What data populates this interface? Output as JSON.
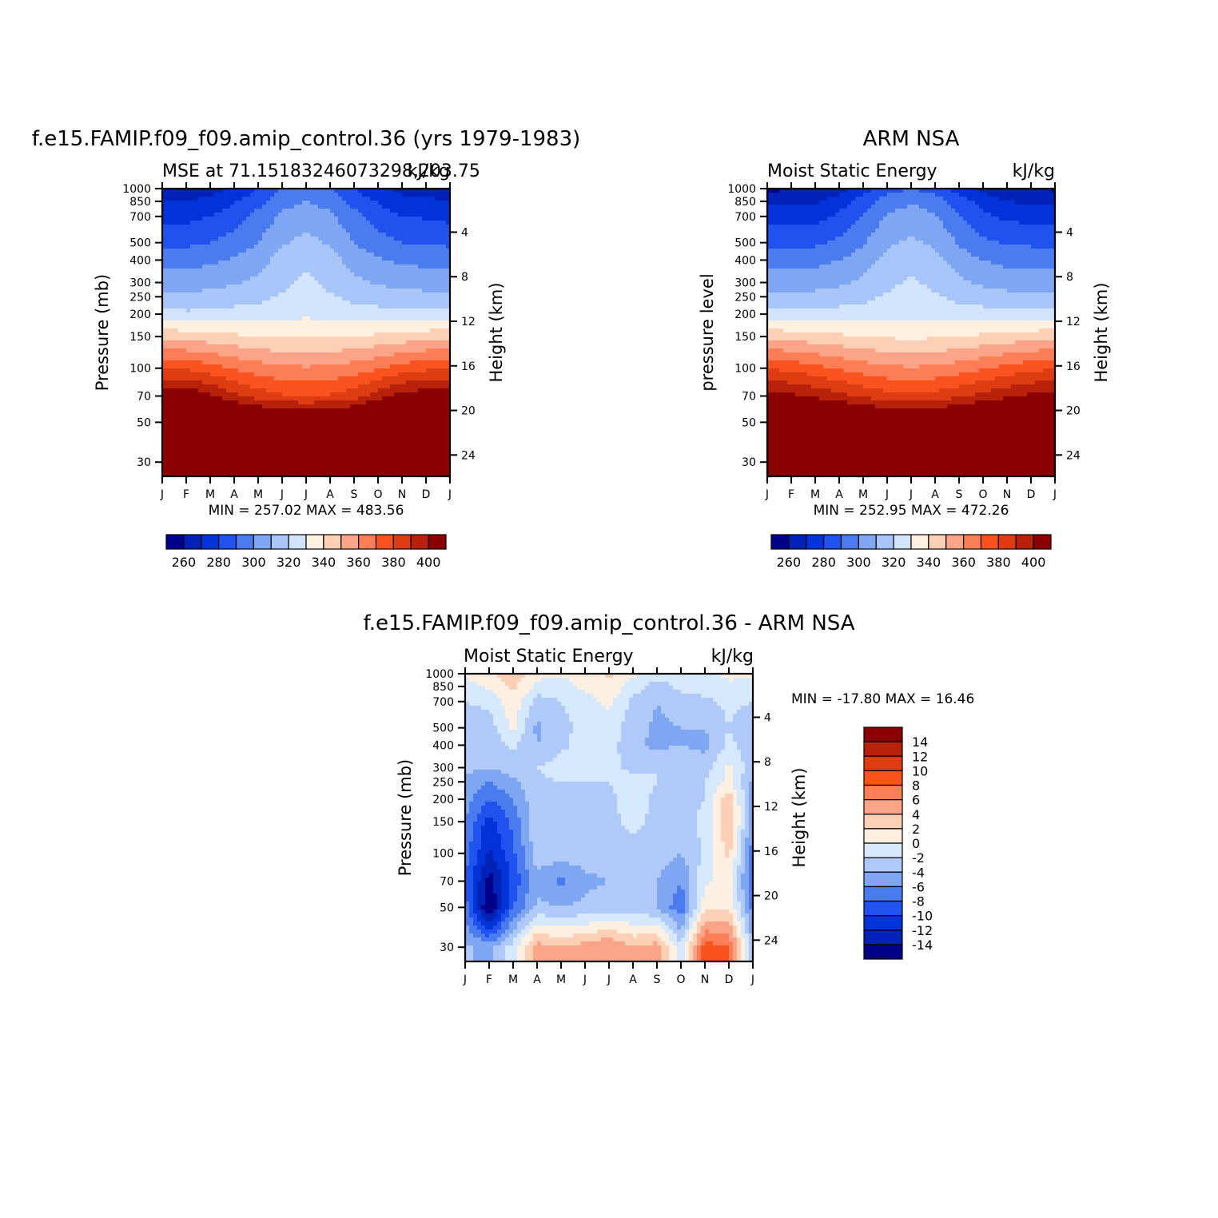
{
  "colors": {
    "mse_levels": [
      "#00008b",
      "#0022b6",
      "#0033d8",
      "#1f52ee",
      "#4a7cf0",
      "#7fa6f3",
      "#a8c5fa",
      "#d2e4fc",
      "#fff0e0",
      "#fdd0b6",
      "#fca487",
      "#fb7e56",
      "#fa5320",
      "#e03c14",
      "#b8220a",
      "#8b0000"
    ],
    "diff_levels": [
      "#00008b",
      "#0022b6",
      "#0033d8",
      "#1f52ee",
      "#4a7cf0",
      "#7fa6f3",
      "#afc9fa",
      "#d6e8fd",
      "#fdf0e0",
      "#fdd0b6",
      "#fca487",
      "#fb7e56",
      "#fa5320",
      "#e03c14",
      "#b8220a",
      "#8b0000"
    ]
  },
  "panels": [
    {
      "id": "model",
      "main_title": "f.e15.FAMIP.f09_f09.amip_control.36 (yrs 1979-1983)",
      "left_string": "MSE at 71.15183246073298,203.75",
      "right_string": "kJ/kg",
      "y_left_label": "Pressure (mb)",
      "y_right_label": "Height (km)",
      "stats": "MIN = 257.02 MAX = 483.56",
      "colorbar_labels": [
        "260",
        "280",
        "300",
        "320",
        "340",
        "360",
        "380",
        "400"
      ]
    },
    {
      "id": "obs",
      "main_title": "ARM NSA",
      "left_string": "Moist Static Energy",
      "right_string": "kJ/kg",
      "y_left_label": "pressure level",
      "y_right_label": "Height (km)",
      "stats": "MIN = 252.95 MAX = 472.26",
      "colorbar_labels": [
        "260",
        "280",
        "300",
        "320",
        "340",
        "360",
        "380",
        "400"
      ]
    },
    {
      "id": "diff",
      "main_title": "f.e15.FAMIP.f09_f09.amip_control.36 - ARM NSA",
      "left_string": "Moist Static Energy",
      "right_string": "kJ/kg",
      "y_left_label": "Pressure (mb)",
      "y_right_label": "Height (km)",
      "stats": "MIN = -17.80 MAX =  16.46",
      "colorbar_labels": [
        "14",
        "12",
        "10",
        "8",
        "6",
        "4",
        "2",
        "0",
        "-2",
        "-4",
        "-6",
        "-8",
        "-10",
        "-12",
        "-14"
      ]
    }
  ],
  "axes": {
    "x_tick_labels": [
      "J",
      "F",
      "M",
      "A",
      "M",
      "J",
      "J",
      "A",
      "S",
      "O",
      "N",
      "D",
      "J"
    ],
    "pressure_ticks": [
      "30",
      "50",
      "70",
      "100",
      "150",
      "200",
      "250",
      "300",
      "400",
      "500",
      "700",
      "850",
      "1000"
    ],
    "height_ticks": [
      "24",
      "20",
      "16",
      "12",
      "8",
      "4"
    ]
  },
  "chart_data": [
    {
      "type": "heatmap",
      "title": "f.e15.FAMIP.f09_f09.amip_control.36 (yrs 1979-1983)",
      "subtitle": "MSE at 71.15183246073298,203.75",
      "units": "kJ/kg",
      "xlabel": "",
      "ylabel": "Pressure (mb)",
      "y2label": "Height (km)",
      "x": [
        "J",
        "F",
        "M",
        "A",
        "M",
        "J",
        "J",
        "A",
        "S",
        "O",
        "N",
        "D",
        "J"
      ],
      "y": [
        1000,
        850,
        700,
        500,
        400,
        300,
        250,
        200,
        150,
        100,
        70,
        50,
        30
      ],
      "ylim": [
        1000,
        25
      ],
      "contour_levels": [
        260,
        270,
        280,
        290,
        300,
        310,
        320,
        330,
        340,
        350,
        360,
        370,
        380,
        390,
        400
      ],
      "values": [
        [
          264,
          263,
          266,
          272,
          280,
          290,
          294,
          290,
          280,
          272,
          267,
          266,
          264
        ],
        [
          270,
          270,
          273,
          279,
          287,
          296,
          300,
          296,
          287,
          279,
          273,
          272,
          270
        ],
        [
          277,
          277,
          280,
          285,
          293,
          302,
          306,
          302,
          293,
          285,
          280,
          279,
          277
        ],
        [
          288,
          288,
          290,
          294,
          300,
          309,
          313,
          309,
          300,
          294,
          290,
          289,
          288
        ],
        [
          296,
          296,
          298,
          301,
          306,
          314,
          318,
          314,
          306,
          301,
          298,
          297,
          296
        ],
        [
          306,
          305,
          307,
          309,
          312,
          318,
          322,
          318,
          312,
          309,
          307,
          306,
          306
        ],
        [
          313,
          312,
          313,
          315,
          317,
          321,
          324,
          321,
          317,
          315,
          313,
          313,
          313
        ],
        [
          324,
          322,
          323,
          324,
          325,
          327,
          328,
          327,
          325,
          324,
          323,
          323,
          324
        ],
        [
          348,
          346,
          344,
          342,
          340,
          339,
          339,
          339,
          340,
          342,
          344,
          346,
          348
        ],
        [
          380,
          378,
          374,
          369,
          365,
          362,
          361,
          362,
          365,
          369,
          374,
          378,
          380
        ],
        [
          407,
          410,
          402,
          392,
          385,
          381,
          380,
          381,
          385,
          395,
          404,
          407,
          407
        ],
        [
          445,
          446,
          440,
          432,
          425,
          421,
          420,
          421,
          425,
          432,
          440,
          445,
          445
        ],
        [
          480,
          482,
          478,
          471,
          465,
          460,
          458,
          460,
          465,
          471,
          478,
          481,
          480
        ]
      ]
    },
    {
      "type": "heatmap",
      "title": "ARM NSA",
      "subtitle": "Moist Static Energy",
      "units": "kJ/kg",
      "xlabel": "",
      "ylabel": "pressure level",
      "y2label": "Height (km)",
      "x": [
        "J",
        "F",
        "M",
        "A",
        "M",
        "J",
        "J",
        "A",
        "S",
        "O",
        "N",
        "D",
        "J"
      ],
      "y": [
        1000,
        850,
        700,
        500,
        400,
        300,
        250,
        200,
        150,
        100,
        70,
        50,
        30
      ],
      "ylim": [
        1000,
        25
      ],
      "contour_levels": [
        260,
        270,
        280,
        290,
        300,
        310,
        320,
        330,
        340,
        350,
        360,
        370,
        380,
        390,
        400
      ],
      "values": [
        [
          258,
          259,
          259,
          266,
          276,
          286,
          290,
          286,
          276,
          266,
          262,
          261,
          258
        ],
        [
          267,
          268,
          268,
          275,
          285,
          294,
          299,
          295,
          285,
          276,
          270,
          268,
          267
        ],
        [
          276,
          276,
          276,
          282,
          291,
          301,
          305,
          301,
          291,
          282,
          278,
          277,
          276
        ],
        [
          287,
          287,
          288,
          292,
          299,
          308,
          312,
          308,
          299,
          292,
          289,
          288,
          287
        ],
        [
          296,
          296,
          297,
          300,
          305,
          313,
          317,
          313,
          305,
          300,
          297,
          297,
          296
        ],
        [
          305,
          305,
          306,
          308,
          312,
          318,
          321,
          318,
          312,
          308,
          306,
          306,
          305
        ],
        [
          312,
          312,
          313,
          315,
          317,
          321,
          324,
          321,
          317,
          315,
          313,
          313,
          312
        ],
        [
          324,
          323,
          323,
          324,
          325,
          327,
          328,
          327,
          325,
          324,
          323,
          323,
          324
        ],
        [
          347,
          346,
          344,
          342,
          340,
          339,
          338,
          339,
          340,
          342,
          344,
          346,
          347
        ],
        [
          379,
          377,
          373,
          369,
          365,
          362,
          361,
          362,
          365,
          369,
          373,
          377,
          379
        ],
        [
          405,
          402,
          398,
          393,
          388,
          384,
          382,
          384,
          388,
          393,
          398,
          402,
          405
        ],
        [
          440,
          438,
          433,
          428,
          423,
          419,
          418,
          419,
          423,
          428,
          433,
          438,
          440
        ],
        [
          470,
          470,
          467,
          463,
          459,
          456,
          455,
          456,
          459,
          463,
          467,
          470,
          470
        ]
      ]
    },
    {
      "type": "heatmap",
      "title": "f.e15.FAMIP.f09_f09.amip_control.36 - ARM NSA",
      "subtitle": "Moist Static Energy",
      "units": "kJ/kg",
      "xlabel": "",
      "ylabel": "Pressure (mb)",
      "y2label": "Height (km)",
      "x": [
        "J",
        "F",
        "M",
        "A",
        "M",
        "J",
        "J",
        "A",
        "S",
        "O",
        "N",
        "D",
        "J"
      ],
      "y": [
        1000,
        850,
        700,
        500,
        400,
        300,
        250,
        200,
        150,
        100,
        70,
        50,
        30
      ],
      "ylim": [
        1000,
        25
      ],
      "contour_levels": [
        -14,
        -12,
        -10,
        -8,
        -6,
        -4,
        -2,
        0,
        2,
        4,
        6,
        8,
        10,
        12,
        14
      ],
      "values": [
        [
          0.5,
          1.5,
          3.5,
          0.5,
          0.5,
          0.5,
          2.5,
          0.5,
          -1.0,
          -0.5,
          -0.5,
          0.5,
          0.5
        ],
        [
          -1.0,
          0.5,
          2.5,
          -0.5,
          -1.0,
          0.5,
          1.5,
          -1.0,
          -3.0,
          -1.5,
          -1.0,
          -0.5,
          -1.0
        ],
        [
          -2.0,
          -1.5,
          1.5,
          -3.0,
          -2.0,
          -1.0,
          0.5,
          -2.5,
          -4.0,
          -3.0,
          -2.5,
          -1.5,
          -2.0
        ],
        [
          -3.5,
          -3.0,
          0.5,
          -4.5,
          -2.5,
          -1.5,
          -1.0,
          -3.0,
          -4.5,
          -4.0,
          -4.0,
          -2.0,
          -3.5
        ],
        [
          -3.0,
          -3.5,
          -1.5,
          -4.0,
          -2.5,
          -1.0,
          -1.0,
          -3.5,
          -4.5,
          -4.0,
          -4.5,
          -1.5,
          -3.0
        ],
        [
          -3.5,
          -4.0,
          -3.0,
          -2.0,
          -1.0,
          -1.0,
          -1.5,
          -2.5,
          -2.0,
          -2.0,
          -3.0,
          0.5,
          -3.5
        ],
        [
          -4.5,
          -6.0,
          -4.5,
          -2.5,
          -2.0,
          -2.0,
          -2.0,
          -1.0,
          -2.0,
          -2.5,
          -2.0,
          0.5,
          -4.5
        ],
        [
          -5.0,
          -8.0,
          -6.0,
          -2.5,
          -2.5,
          -2.5,
          -2.5,
          -1.0,
          -2.5,
          -2.5,
          -2.0,
          3.5,
          -5.0
        ],
        [
          -6.0,
          -11.0,
          -7.5,
          -2.0,
          -2.5,
          -2.5,
          -2.5,
          -1.5,
          -2.5,
          -3.0,
          -1.5,
          4.5,
          -6.0
        ],
        [
          -7.0,
          -12.5,
          -8.5,
          -3.0,
          -3.0,
          -3.0,
          -3.0,
          -2.5,
          -3.0,
          -4.0,
          -1.5,
          2.5,
          -7.0
        ],
        [
          -8.0,
          -15.0,
          -9.5,
          -4.5,
          -6.5,
          -4.5,
          -4.0,
          -3.0,
          -4.0,
          -6.0,
          -0.5,
          1.0,
          -8.0
        ],
        [
          -7.0,
          -16.5,
          -8.0,
          -3.5,
          -4.0,
          -3.5,
          -3.0,
          -3.0,
          -4.0,
          -7.5,
          1.5,
          2.0,
          -7.0
        ],
        [
          -3.5,
          -5.0,
          -1.0,
          5.0,
          4.0,
          5.0,
          6.0,
          4.0,
          5.0,
          -1.5,
          9.0,
          8.0,
          -3.5
        ]
      ]
    }
  ]
}
